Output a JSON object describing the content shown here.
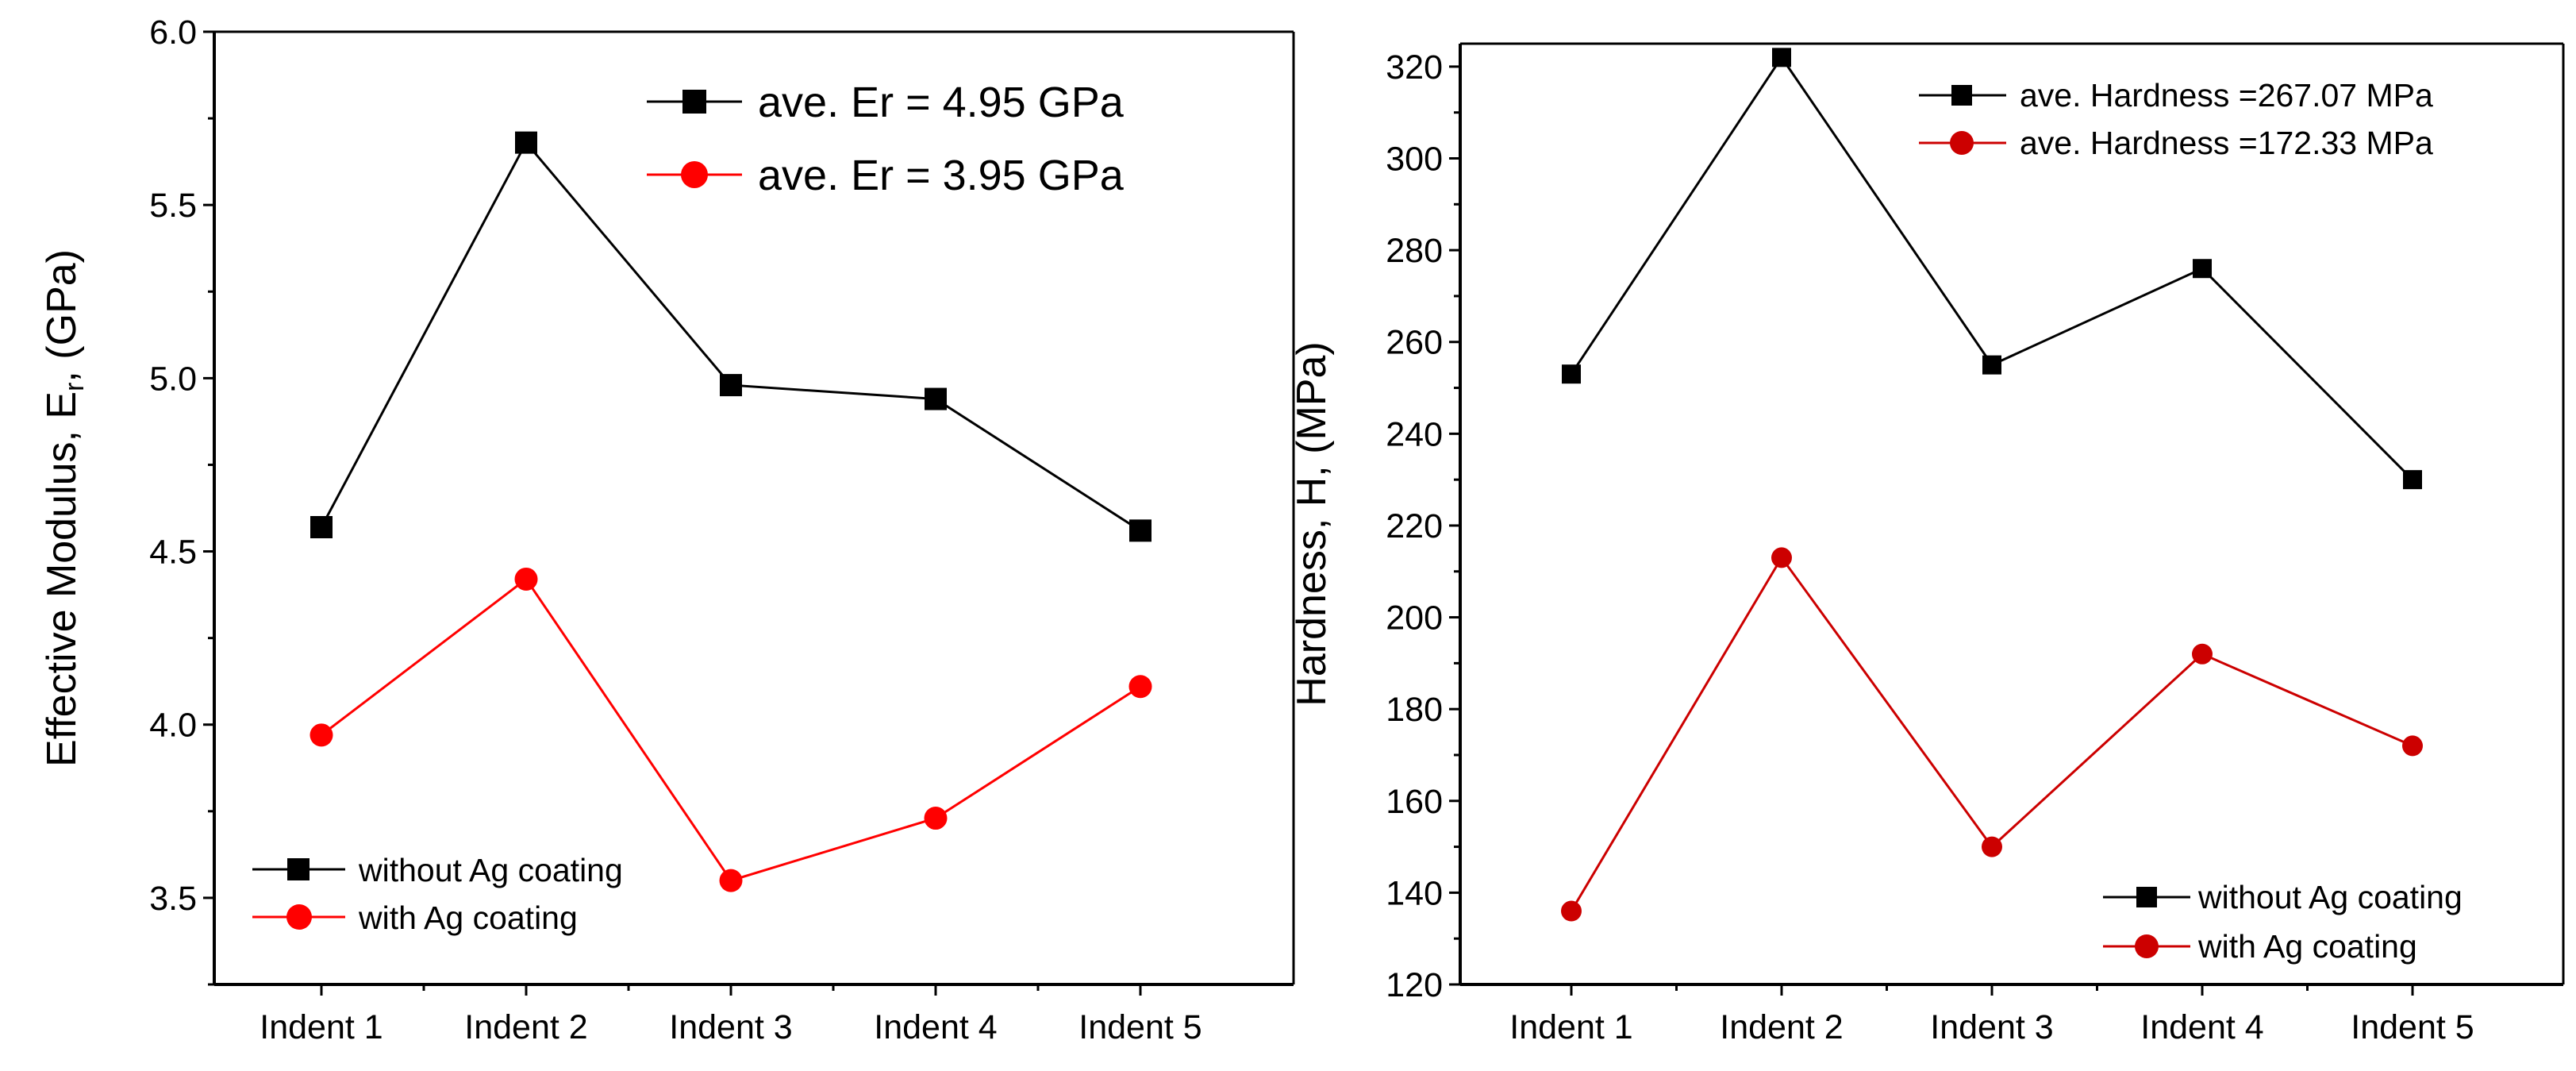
{
  "chart_data": [
    {
      "type": "line",
      "categories": [
        "Indent 1",
        "Indent 2",
        "Indent 3",
        "Indent 4",
        "Indent 5"
      ],
      "ylabel": "Effective Modulus, E",
      "ylabel_sub": "r",
      "ylabel_suffix": ", (GPa)",
      "ylim": [
        3.25,
        6.0
      ],
      "yticks": [
        "3.5",
        "4.0",
        "4.5",
        "5.0",
        "5.5",
        "6.0"
      ],
      "grid": false,
      "series": [
        {
          "name": "without Ag coating",
          "color": "#000000",
          "marker": "square",
          "values": [
            4.57,
            5.68,
            4.98,
            4.94,
            4.56
          ]
        },
        {
          "name": "with Ag coating",
          "color": "#ff0000",
          "marker": "circle",
          "values": [
            3.97,
            4.42,
            3.55,
            3.73,
            4.11
          ]
        }
      ],
      "annotations": [
        {
          "text": "ave. Er = 4.95 GPa",
          "color": "#000000",
          "marker": "square"
        },
        {
          "text": "ave. Er = 3.95 GPa",
          "color": "#ff0000",
          "marker": "circle"
        }
      ]
    },
    {
      "type": "line",
      "categories": [
        "Indent 1",
        "Indent 2",
        "Indent 3",
        "Indent 4",
        "Indent 5"
      ],
      "ylabel": "Hardness, H, (MPa)",
      "ylim": [
        120,
        325
      ],
      "yticks": [
        "120",
        "140",
        "160",
        "180",
        "200",
        "220",
        "240",
        "260",
        "280",
        "300",
        "320"
      ],
      "grid": false,
      "series": [
        {
          "name": "without Ag coating",
          "color": "#000000",
          "marker": "square",
          "values": [
            253,
            322,
            255,
            276,
            230
          ]
        },
        {
          "name": "with Ag coating",
          "color": "#cc0000",
          "marker": "circle",
          "values": [
            136,
            213,
            150,
            192,
            172
          ]
        }
      ],
      "annotations": [
        {
          "text": "ave. Hardness =267.07 MPa",
          "color": "#000000",
          "marker": "square"
        },
        {
          "text": "ave. Hardness =172.33 MPa",
          "color": "#cc0000",
          "marker": "circle"
        }
      ]
    }
  ]
}
